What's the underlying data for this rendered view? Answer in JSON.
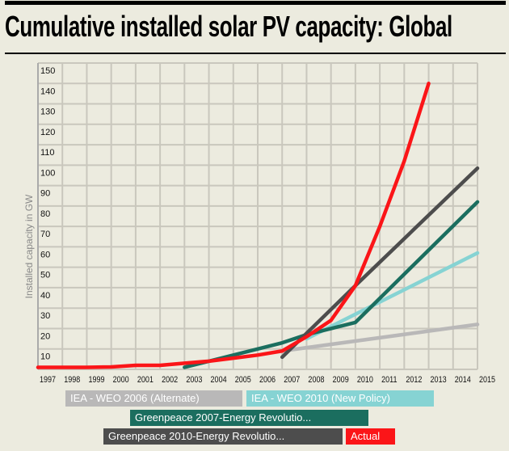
{
  "chart_data": {
    "type": "line",
    "title": "Cumulative installed solar PV capacity: Global",
    "ylabel": "Installed capacity in GW",
    "xlabel": "",
    "xlim": [
      1997,
      2015
    ],
    "ylim": [
      0,
      150
    ],
    "grid": true,
    "legend_position": "bottom",
    "x_ticks": [
      "1997",
      "1998",
      "1999",
      "2000",
      "2001",
      "2002",
      "2003",
      "2004",
      "2005",
      "2006",
      "2007",
      "2008",
      "2009",
      "2010",
      "2011",
      "2012",
      "2013",
      "2014",
      "2015"
    ],
    "y_ticks": [
      "10",
      "20",
      "30",
      "40",
      "50",
      "60",
      "70",
      "80",
      "90",
      "100",
      "110",
      "120",
      "130",
      "140",
      "150"
    ],
    "series": [
      {
        "name": "IEA - WEO 2006 (Alternate)",
        "color": "#b9b8b8",
        "x": [
          2007,
          2015
        ],
        "y": [
          9,
          22
        ]
      },
      {
        "name": "IEA - WEO 2010 (New Policy)",
        "color": "#86d3d3",
        "x": [
          2008,
          2010,
          2015
        ],
        "y": [
          15,
          27,
          57
        ]
      },
      {
        "name": "Greenpeace 2007-Energy Revolutio...",
        "color": "#1b6e5f",
        "x": [
          2003,
          2007,
          2008,
          2010,
          2015
        ],
        "y": [
          1,
          13,
          17,
          23,
          82
        ]
      },
      {
        "name": "Greenpeace 2010-Energy Revolutio...",
        "color": "#4d4d4d",
        "x": [
          2007,
          2010,
          2015
        ],
        "y": [
          6,
          41,
          98.5
        ]
      },
      {
        "name": "Actual",
        "color": "#fb1518",
        "x": [
          1997,
          1998,
          1999,
          2000,
          2001,
          2002,
          2003,
          2004,
          2005,
          2006,
          2007,
          2008,
          2009,
          2010,
          2011,
          2012,
          2013
        ],
        "y": [
          1,
          1,
          1,
          1.2,
          2,
          2,
          3,
          4,
          5.5,
          7,
          9,
          16,
          24,
          41,
          70,
          102,
          140
        ]
      }
    ]
  }
}
